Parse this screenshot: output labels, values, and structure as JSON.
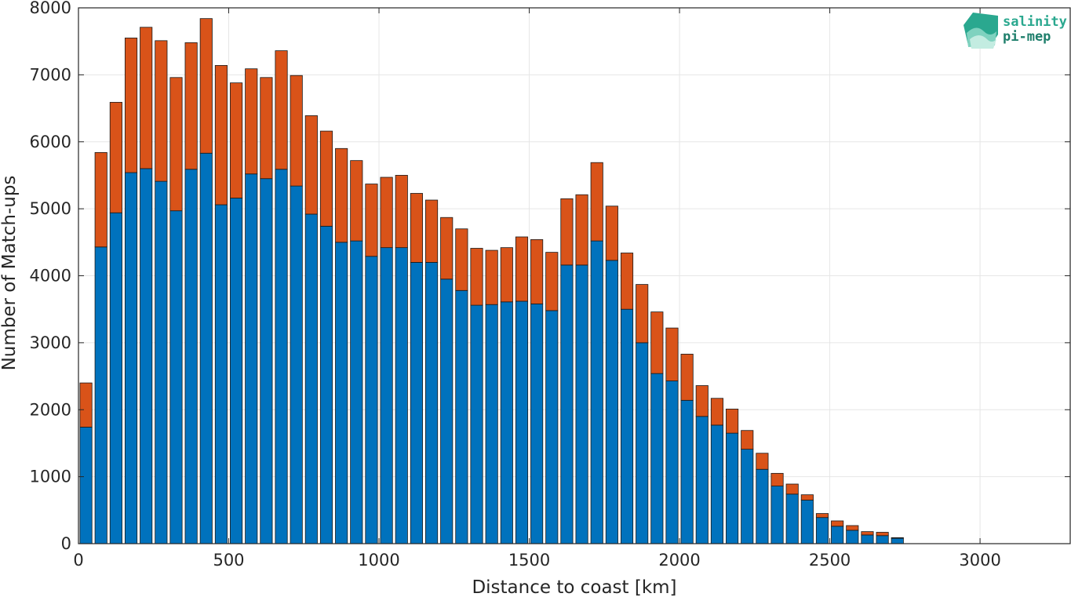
{
  "chart_data": {
    "type": "bar",
    "stacked": true,
    "xlabel": "Distance to coast [km]",
    "ylabel": "Number of Match-ups",
    "xlim": [
      0,
      3300
    ],
    "ylim": [
      0,
      8000
    ],
    "bin_width": 50,
    "grid": true,
    "xticks": [
      0,
      500,
      1000,
      1500,
      2000,
      2500,
      3000
    ],
    "yticks": [
      0,
      1000,
      2000,
      3000,
      4000,
      5000,
      6000,
      7000,
      8000
    ],
    "x": [
      25,
      75,
      125,
      175,
      225,
      275,
      325,
      375,
      425,
      475,
      525,
      575,
      625,
      675,
      725,
      775,
      825,
      875,
      925,
      975,
      1025,
      1075,
      1125,
      1175,
      1225,
      1275,
      1325,
      1375,
      1425,
      1475,
      1525,
      1575,
      1625,
      1675,
      1725,
      1775,
      1825,
      1875,
      1925,
      1975,
      2025,
      2075,
      2125,
      2175,
      2225,
      2275,
      2325,
      2375,
      2425,
      2475,
      2525,
      2575,
      2625,
      2675,
      2725
    ],
    "series": [
      {
        "color": "#0072bd",
        "values": [
          1740,
          4430,
          4940,
          5540,
          5600,
          5410,
          4970,
          5590,
          5830,
          5060,
          5160,
          5520,
          5450,
          5590,
          5340,
          4920,
          4740,
          4500,
          4520,
          4290,
          4420,
          4420,
          4200,
          4200,
          3950,
          3780,
          3560,
          3570,
          3610,
          3620,
          3580,
          3480,
          4160,
          4160,
          4520,
          4230,
          3500,
          3000,
          2540,
          2430,
          2140,
          1900,
          1770,
          1650,
          1410,
          1110,
          860,
          740,
          650,
          390,
          260,
          200,
          130,
          120,
          80
        ]
      },
      {
        "color": "#d95319",
        "values": [
          660,
          1410,
          1650,
          2010,
          2110,
          2100,
          1990,
          1890,
          2010,
          2080,
          1720,
          1570,
          1510,
          1770,
          1650,
          1470,
          1420,
          1400,
          1200,
          1080,
          1050,
          1080,
          1030,
          930,
          920,
          920,
          850,
          810,
          810,
          960,
          960,
          870,
          990,
          1050,
          1170,
          810,
          840,
          870,
          920,
          790,
          690,
          460,
          400,
          360,
          280,
          240,
          190,
          150,
          80,
          60,
          80,
          70,
          50,
          50,
          10
        ]
      }
    ]
  },
  "logo": {
    "line1": "salinity",
    "line2": "pi-mep",
    "color": "#2aa88f"
  }
}
